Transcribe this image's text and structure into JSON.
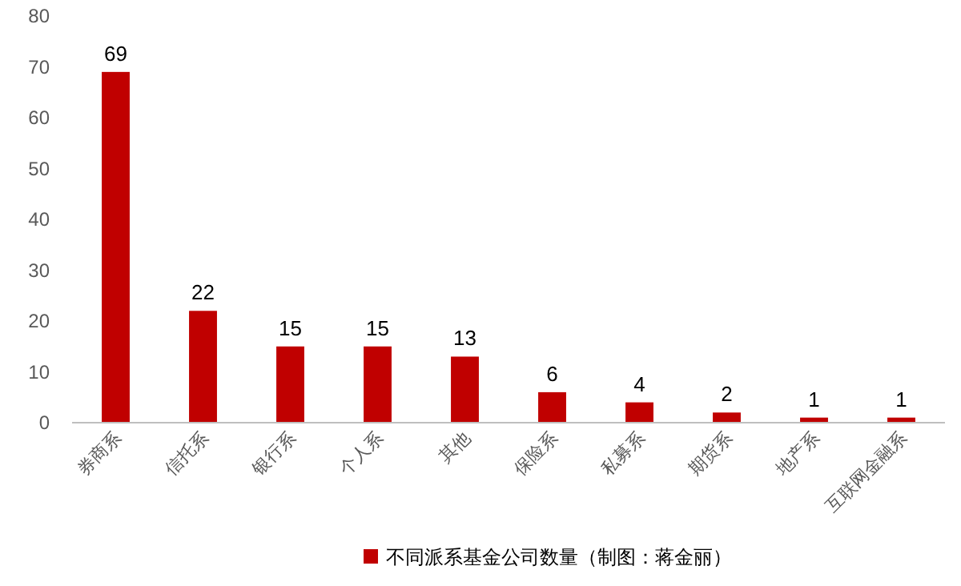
{
  "chart_data": {
    "type": "bar",
    "categories": [
      "券商系",
      "信托系",
      "银行系",
      "个人系",
      "其他",
      "保险系",
      "私募系",
      "期货系",
      "地产系",
      "互联网金融系"
    ],
    "series": [
      {
        "name": "不同派系基金公司数量（制图：蒋金丽）",
        "color": "#c00000",
        "values": [
          69,
          22,
          15,
          15,
          13,
          6,
          4,
          2,
          1,
          1
        ]
      }
    ],
    "ylim": [
      0,
      80
    ],
    "yticks": [
      0,
      10,
      20,
      30,
      40,
      50,
      60,
      70,
      80
    ],
    "data_labels": true,
    "legend": "bottom",
    "grid": false
  }
}
